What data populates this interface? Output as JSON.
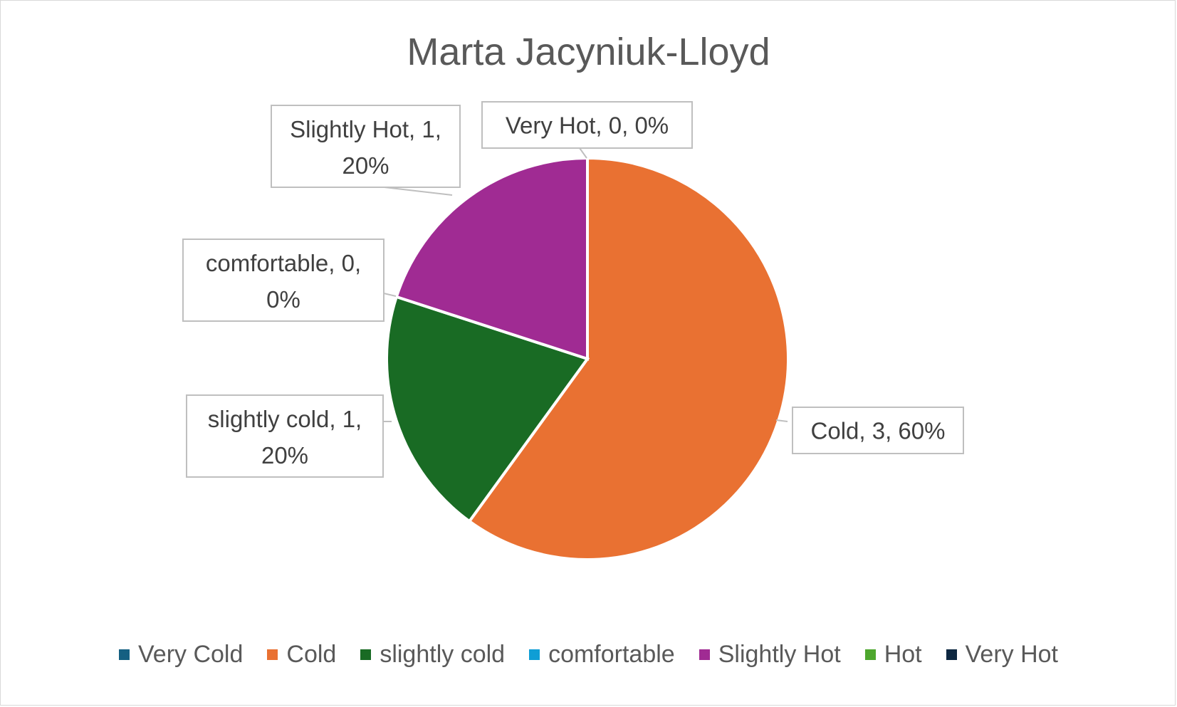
{
  "chart_data": {
    "type": "pie",
    "title": "Marta Jacyniuk-Lloyd",
    "legend_position": "bottom",
    "slices": [
      {
        "label": "Very Cold",
        "value": 0,
        "percent": "0%",
        "color": "#156082",
        "data_label": ""
      },
      {
        "label": "Cold",
        "value": 3,
        "percent": "60%",
        "color": "#e97132",
        "data_label": "Cold, 3, 60%"
      },
      {
        "label": "slightly cold",
        "value": 1,
        "percent": "20%",
        "color": "#196b24",
        "data_label": "slightly cold, 1, 20%"
      },
      {
        "label": "comfortable",
        "value": 0,
        "percent": "0%",
        "color": "#0f9ed5",
        "data_label": "comfortable, 0, 0%"
      },
      {
        "label": "Slightly Hot",
        "value": 1,
        "percent": "20%",
        "color": "#a02b93",
        "data_label": "Slightly Hot, 1, 20%"
      },
      {
        "label": "Hot",
        "value": 0,
        "percent": "0%",
        "color": "#4ea72e",
        "data_label": ""
      },
      {
        "label": "Very Hot",
        "value": 0,
        "percent": "0%",
        "color": "#0e2841",
        "data_label": "Very Hot, 0, 0%"
      }
    ]
  }
}
